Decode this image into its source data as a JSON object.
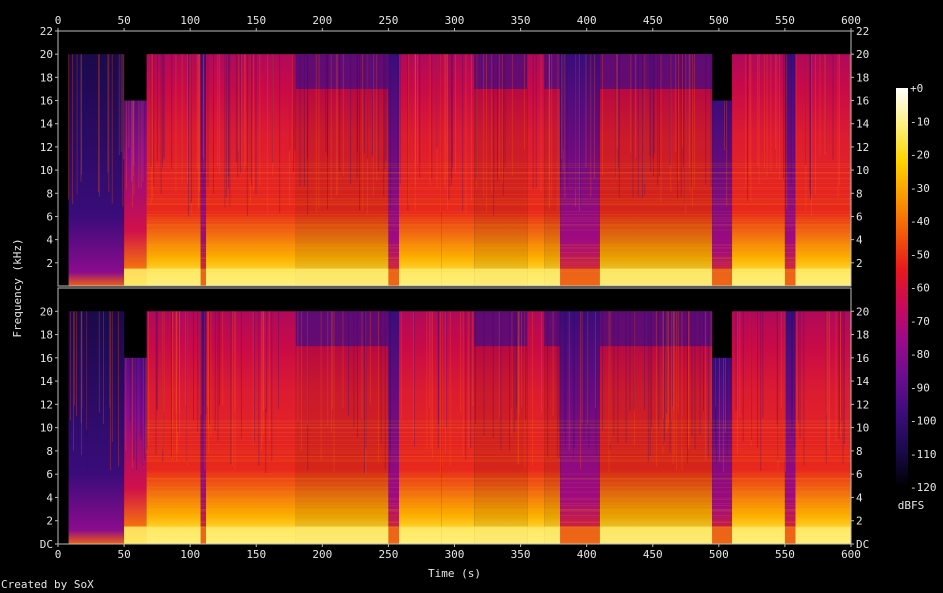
{
  "chart_data": {
    "type": "heatmap",
    "x_label": "Time (s)",
    "y_label": "Frequency (kHz)",
    "x_ticks": [
      "0",
      "50",
      "100",
      "150",
      "200",
      "250",
      "300",
      "350",
      "400",
      "450",
      "500",
      "550",
      "600"
    ],
    "x_range": [
      0,
      600
    ],
    "channels": [
      {
        "y_ticks": [
          "2",
          "4",
          "6",
          "8",
          "10",
          "12",
          "14",
          "16",
          "18",
          "20",
          "22"
        ]
      },
      {
        "y_ticks": [
          "DC",
          "2",
          "4",
          "6",
          "8",
          "10",
          "12",
          "14",
          "16",
          "18",
          "20"
        ]
      }
    ],
    "y_range_khz": [
      0,
      22
    ],
    "colorbar": {
      "label": "dBFS",
      "ticks": [
        "+0",
        "-10",
        "-20",
        "-30",
        "-40",
        "-50",
        "-60",
        "-70",
        "-80",
        "-90",
        "-100",
        "-110",
        "-120"
      ],
      "range": [
        -120,
        0
      ],
      "colors": [
        "#000000",
        "#1a0a4a",
        "#3a0c7a",
        "#6a0c90",
        "#9a0a8c",
        "#c80a5a",
        "#e8181c",
        "#f45a08",
        "#fa9a00",
        "#ffd400",
        "#fff080",
        "#ffffff"
      ]
    },
    "segments": [
      {
        "start": 0,
        "end": 8,
        "level": "silence"
      },
      {
        "start": 8,
        "end": 50,
        "level": "quiet",
        "cutoff_khz": 20
      },
      {
        "start": 50,
        "end": 67,
        "level": "medium",
        "cutoff_khz": 16
      },
      {
        "start": 67,
        "end": 108,
        "level": "loud",
        "cutoff_khz": 20
      },
      {
        "start": 108,
        "end": 112,
        "level": "dip",
        "cutoff_khz": 20
      },
      {
        "start": 112,
        "end": 180,
        "level": "loud",
        "cutoff_khz": 20
      },
      {
        "start": 180,
        "end": 250,
        "level": "medium-loud",
        "cutoff_khz": 20
      },
      {
        "start": 250,
        "end": 258,
        "level": "dip",
        "cutoff_khz": 20
      },
      {
        "start": 258,
        "end": 290,
        "level": "loud",
        "cutoff_khz": 20
      },
      {
        "start": 290,
        "end": 315,
        "level": "loud",
        "cutoff_khz": 20
      },
      {
        "start": 315,
        "end": 355,
        "level": "medium-loud",
        "cutoff_khz": 20
      },
      {
        "start": 355,
        "end": 368,
        "level": "loud",
        "cutoff_khz": 20
      },
      {
        "start": 368,
        "end": 380,
        "level": "medium-loud",
        "cutoff_khz": 20
      },
      {
        "start": 380,
        "end": 410,
        "level": "quiet-low",
        "cutoff_khz": 20
      },
      {
        "start": 410,
        "end": 495,
        "level": "medium-loud",
        "cutoff_khz": 20
      },
      {
        "start": 495,
        "end": 510,
        "level": "dip",
        "cutoff_khz": 16
      },
      {
        "start": 510,
        "end": 550,
        "level": "loud",
        "cutoff_khz": 20
      },
      {
        "start": 550,
        "end": 558,
        "level": "dip",
        "cutoff_khz": 20
      },
      {
        "start": 558,
        "end": 600,
        "level": "loud",
        "cutoff_khz": 20
      }
    ]
  },
  "credit": "Created by SoX"
}
